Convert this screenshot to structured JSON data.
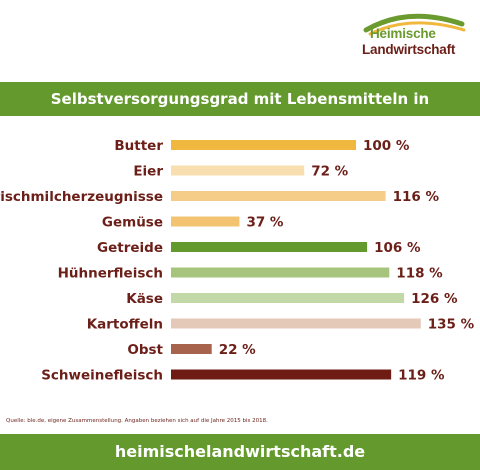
{
  "logo": {
    "line1": "Heimische",
    "line2": "Landwirtschaft"
  },
  "title": "Selbstversorgungsgrad mit Lebensmitteln in Deutschland",
  "source": "Quelle: ble.de, eigene Zusammenstellung. Angaben beziehen sich auf die Jahre 2015 bis 2018.",
  "footer": "heimischelandwirtschaft.de",
  "chart_data": {
    "type": "bar",
    "orientation": "horizontal",
    "title": "Selbstversorgungsgrad mit Lebensmitteln in Deutschland",
    "unit": "%",
    "categories": [
      "Butter",
      "Eier",
      "Frischmilcherzeugnisse",
      "Gemüse",
      "Getreide",
      "Hühnerfleisch",
      "Käse",
      "Kartoffeln",
      "Obst",
      "Schweinefleisch"
    ],
    "values": [
      100,
      72,
      116,
      37,
      106,
      118,
      126,
      135,
      22,
      119
    ],
    "value_labels": [
      "100 %",
      "72 %",
      "116 %",
      "37 %",
      "106 %",
      "118 %",
      "126 %",
      "135 %",
      "22 %",
      "119 %"
    ],
    "colors": [
      "#f1b83f",
      "#f9dfb0",
      "#f5cd88",
      "#f3c371",
      "#64992d",
      "#a6c47b",
      "#c2d8a6",
      "#e5c9b8",
      "#a7634b",
      "#6e1c14"
    ],
    "grid": false,
    "legend": false
  }
}
